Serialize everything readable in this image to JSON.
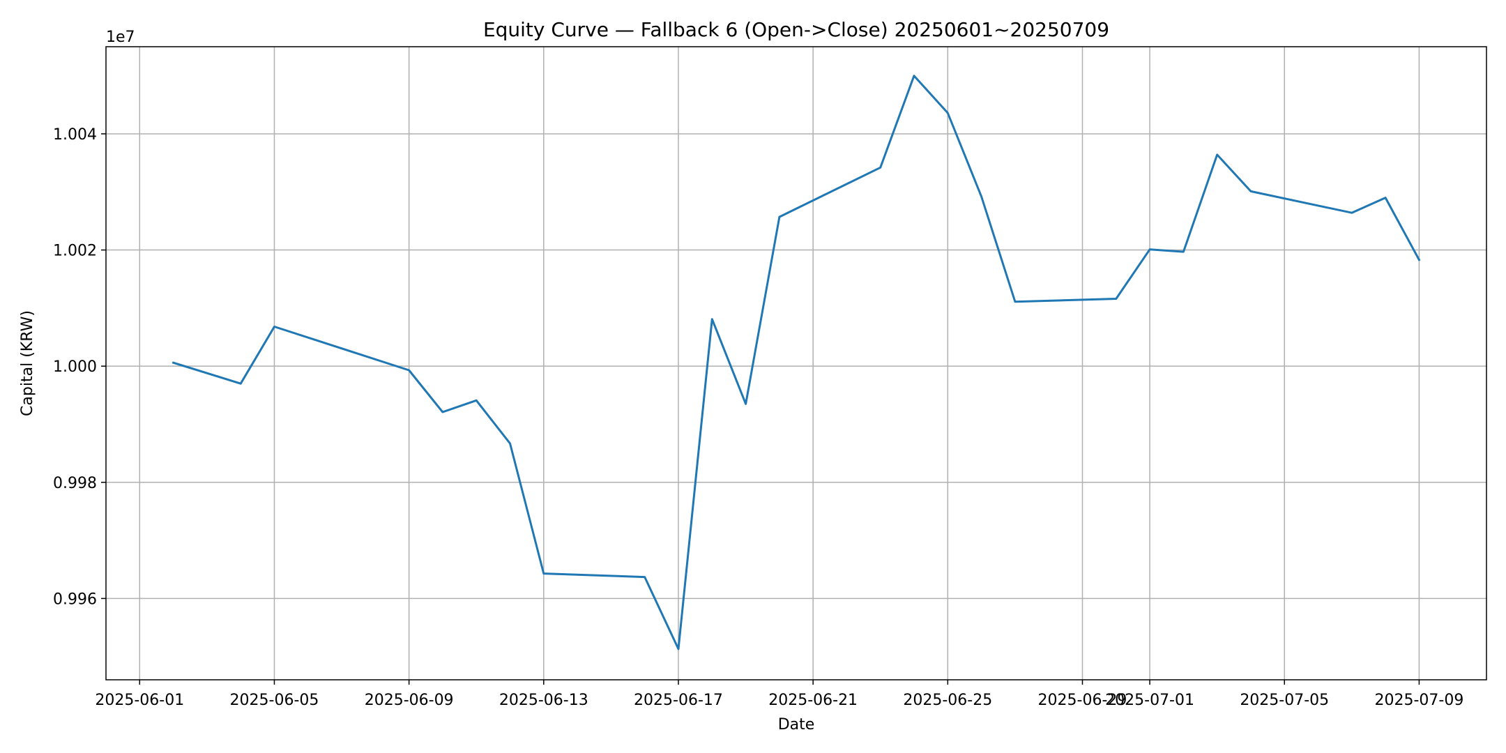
{
  "chart_data": {
    "type": "line",
    "title": "Equity Curve — Fallback 6 (Open->Close) 20250601~20250709",
    "xlabel": "Date",
    "ylabel": "Capital (KRW)",
    "y_offset_label": "1e7",
    "xlim": [
      "2025-05-31",
      "2025-07-11"
    ],
    "ylim": [
      9946000,
      10055000
    ],
    "grid": true,
    "line_color": "#1f77b4",
    "x_ticks": [
      {
        "date": "2025-06-01",
        "label": "2025-06-01"
      },
      {
        "date": "2025-06-05",
        "label": "2025-06-05"
      },
      {
        "date": "2025-06-09",
        "label": "2025-06-09"
      },
      {
        "date": "2025-06-13",
        "label": "2025-06-13"
      },
      {
        "date": "2025-06-17",
        "label": "2025-06-17"
      },
      {
        "date": "2025-06-21",
        "label": "2025-06-21"
      },
      {
        "date": "2025-06-25",
        "label": "2025-06-25"
      },
      {
        "date": "2025-06-29",
        "label": "2025-06-29"
      },
      {
        "date": "2025-07-01",
        "label": "2025-07-01"
      },
      {
        "date": "2025-07-05",
        "label": "2025-07-05"
      },
      {
        "date": "2025-07-09",
        "label": "2025-07-09"
      }
    ],
    "y_ticks": [
      {
        "value": 9960000,
        "label": "0.996"
      },
      {
        "value": 9980000,
        "label": "0.998"
      },
      {
        "value": 10000000,
        "label": "1.000"
      },
      {
        "value": 10020000,
        "label": "1.002"
      },
      {
        "value": 10040000,
        "label": "1.004"
      }
    ],
    "series": [
      {
        "x": [
          "2025-06-02",
          "2025-06-04",
          "2025-06-05",
          "2025-06-09",
          "2025-06-10",
          "2025-06-11",
          "2025-06-12",
          "2025-06-13",
          "2025-06-16",
          "2025-06-17",
          "2025-06-18",
          "2025-06-19",
          "2025-06-20",
          "2025-06-23",
          "2025-06-24",
          "2025-06-25",
          "2025-06-26",
          "2025-06-27",
          "2025-06-30",
          "2025-07-01",
          "2025-07-02",
          "2025-07-03",
          "2025-07-04",
          "2025-07-07",
          "2025-07-08",
          "2025-07-09"
        ],
        "y": [
          10000600,
          9997000,
          10006800,
          9999300,
          9992100,
          9994100,
          9986700,
          9964300,
          9963700,
          9951300,
          10008100,
          9993500,
          10025700,
          10034200,
          10050000,
          10043600,
          10029200,
          10011100,
          10011600,
          10020100,
          10019700,
          10036400,
          10030100,
          10026400,
          10029000,
          10018300
        ]
      }
    ]
  }
}
